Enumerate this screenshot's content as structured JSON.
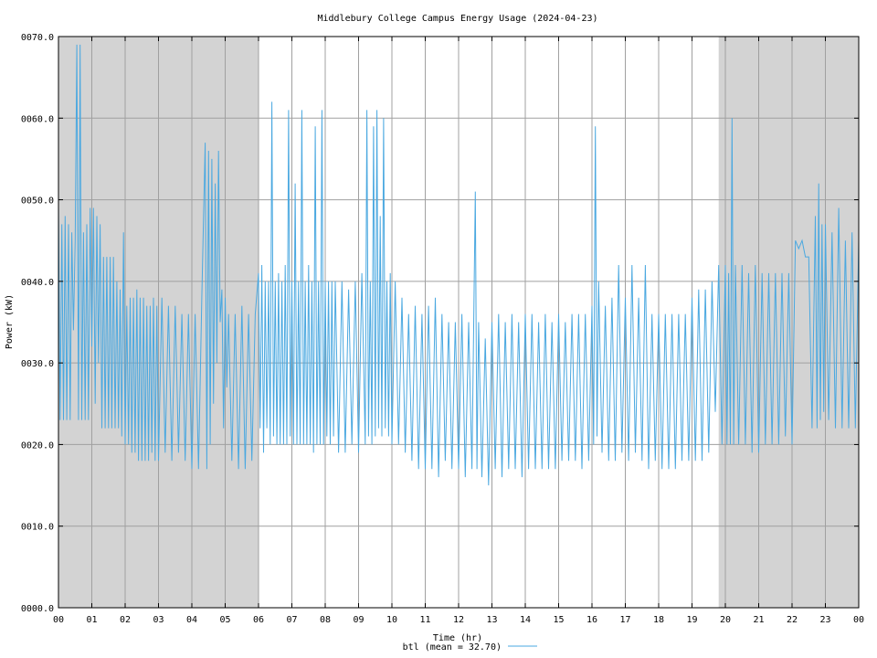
{
  "chart_data": {
    "type": "line",
    "title": "Middlebury College Campus Energy Usage (2024-04-23)",
    "xlabel": "Time (hr)",
    "ylabel": "Power (kW)",
    "xlim": [
      0,
      24
    ],
    "ylim": [
      0,
      70
    ],
    "x_ticks": [
      "00",
      "01",
      "02",
      "03",
      "04",
      "05",
      "06",
      "07",
      "08",
      "09",
      "10",
      "11",
      "12",
      "13",
      "14",
      "15",
      "16",
      "17",
      "18",
      "19",
      "20",
      "21",
      "22",
      "23",
      "00"
    ],
    "y_ticks": [
      "0000.0",
      "0010.0",
      "0020.0",
      "0030.0",
      "0040.0",
      "0050.0",
      "0060.0",
      "0070.0"
    ],
    "grid": true,
    "shaded_intervals": [
      [
        0,
        6
      ],
      [
        19.8,
        24
      ]
    ],
    "shade_color": "#d3d3d3",
    "legend": {
      "label": "btl (mean = 32.70)",
      "position": "bottom-center"
    },
    "series": [
      {
        "name": "btl",
        "color": "#4aa8e0",
        "points": [
          [
            0.0,
            49
          ],
          [
            0.05,
            23
          ],
          [
            0.1,
            47
          ],
          [
            0.15,
            23
          ],
          [
            0.2,
            48
          ],
          [
            0.25,
            23
          ],
          [
            0.3,
            47
          ],
          [
            0.35,
            23
          ],
          [
            0.4,
            46
          ],
          [
            0.45,
            34
          ],
          [
            0.5,
            45
          ],
          [
            0.55,
            69
          ],
          [
            0.6,
            23
          ],
          [
            0.65,
            69
          ],
          [
            0.7,
            23
          ],
          [
            0.75,
            46
          ],
          [
            0.8,
            23
          ],
          [
            0.85,
            47
          ],
          [
            0.9,
            23
          ],
          [
            0.95,
            49
          ],
          [
            1.0,
            32
          ],
          [
            1.05,
            49
          ],
          [
            1.1,
            25
          ],
          [
            1.15,
            48
          ],
          [
            1.2,
            30
          ],
          [
            1.25,
            47
          ],
          [
            1.3,
            22
          ],
          [
            1.35,
            43
          ],
          [
            1.4,
            22
          ],
          [
            1.45,
            43
          ],
          [
            1.5,
            22
          ],
          [
            1.55,
            43
          ],
          [
            1.6,
            22
          ],
          [
            1.65,
            43
          ],
          [
            1.7,
            22
          ],
          [
            1.75,
            40
          ],
          [
            1.8,
            22
          ],
          [
            1.85,
            39
          ],
          [
            1.9,
            21
          ],
          [
            1.95,
            46
          ],
          [
            2.0,
            20
          ],
          [
            2.05,
            37
          ],
          [
            2.1,
            20
          ],
          [
            2.15,
            38
          ],
          [
            2.2,
            19
          ],
          [
            2.25,
            38
          ],
          [
            2.3,
            19
          ],
          [
            2.35,
            39
          ],
          [
            2.4,
            18
          ],
          [
            2.45,
            38
          ],
          [
            2.5,
            18
          ],
          [
            2.55,
            38
          ],
          [
            2.6,
            18
          ],
          [
            2.65,
            37
          ],
          [
            2.7,
            18
          ],
          [
            2.75,
            37
          ],
          [
            2.8,
            19
          ],
          [
            2.85,
            38
          ],
          [
            2.9,
            18
          ],
          [
            2.95,
            37
          ],
          [
            3.0,
            18
          ],
          [
            3.1,
            38
          ],
          [
            3.2,
            19
          ],
          [
            3.3,
            37
          ],
          [
            3.4,
            18
          ],
          [
            3.5,
            37
          ],
          [
            3.6,
            19
          ],
          [
            3.7,
            36
          ],
          [
            3.8,
            18
          ],
          [
            3.9,
            36
          ],
          [
            4.0,
            17
          ],
          [
            4.1,
            36
          ],
          [
            4.2,
            17
          ],
          [
            4.3,
            38
          ],
          [
            4.4,
            57
          ],
          [
            4.45,
            17
          ],
          [
            4.5,
            56
          ],
          [
            4.55,
            20
          ],
          [
            4.6,
            55
          ],
          [
            4.65,
            25
          ],
          [
            4.7,
            52
          ],
          [
            4.75,
            30
          ],
          [
            4.8,
            56
          ],
          [
            4.85,
            35
          ],
          [
            4.9,
            39
          ],
          [
            4.95,
            22
          ],
          [
            5.0,
            38
          ],
          [
            5.05,
            27
          ],
          [
            5.1,
            36
          ],
          [
            5.2,
            18
          ],
          [
            5.3,
            36
          ],
          [
            5.4,
            17
          ],
          [
            5.5,
            37
          ],
          [
            5.6,
            17
          ],
          [
            5.7,
            36
          ],
          [
            5.8,
            18
          ],
          [
            5.9,
            36
          ],
          [
            6.0,
            41
          ],
          [
            6.05,
            22
          ],
          [
            6.1,
            42
          ],
          [
            6.15,
            19
          ],
          [
            6.2,
            40
          ],
          [
            6.25,
            22
          ],
          [
            6.3,
            40
          ],
          [
            6.35,
            20
          ],
          [
            6.4,
            62
          ],
          [
            6.45,
            21
          ],
          [
            6.5,
            40
          ],
          [
            6.55,
            20
          ],
          [
            6.6,
            41
          ],
          [
            6.65,
            20
          ],
          [
            6.7,
            40
          ],
          [
            6.75,
            20
          ],
          [
            6.8,
            42
          ],
          [
            6.85,
            20
          ],
          [
            6.9,
            61
          ],
          [
            6.95,
            21
          ],
          [
            7.0,
            40
          ],
          [
            7.05,
            20
          ],
          [
            7.1,
            52
          ],
          [
            7.15,
            20
          ],
          [
            7.2,
            40
          ],
          [
            7.25,
            20
          ],
          [
            7.3,
            61
          ],
          [
            7.35,
            20
          ],
          [
            7.4,
            40
          ],
          [
            7.45,
            20
          ],
          [
            7.5,
            42
          ],
          [
            7.55,
            20
          ],
          [
            7.6,
            40
          ],
          [
            7.65,
            19
          ],
          [
            7.7,
            59
          ],
          [
            7.75,
            20
          ],
          [
            7.8,
            40
          ],
          [
            7.85,
            20
          ],
          [
            7.9,
            61
          ],
          [
            7.95,
            20
          ],
          [
            8.0,
            40
          ],
          [
            8.05,
            21
          ],
          [
            8.1,
            40
          ],
          [
            8.15,
            20
          ],
          [
            8.2,
            40
          ],
          [
            8.25,
            21
          ],
          [
            8.3,
            40
          ],
          [
            8.4,
            19
          ],
          [
            8.5,
            40
          ],
          [
            8.6,
            19
          ],
          [
            8.7,
            39
          ],
          [
            8.8,
            20
          ],
          [
            8.9,
            40
          ],
          [
            9.0,
            19
          ],
          [
            9.1,
            41
          ],
          [
            9.2,
            20
          ],
          [
            9.25,
            61
          ],
          [
            9.3,
            21
          ],
          [
            9.35,
            40
          ],
          [
            9.4,
            20
          ],
          [
            9.45,
            59
          ],
          [
            9.5,
            21
          ],
          [
            9.55,
            61
          ],
          [
            9.6,
            22
          ],
          [
            9.65,
            48
          ],
          [
            9.7,
            21
          ],
          [
            9.75,
            60
          ],
          [
            9.8,
            22
          ],
          [
            9.85,
            40
          ],
          [
            9.9,
            21
          ],
          [
            9.95,
            41
          ],
          [
            10.0,
            20
          ],
          [
            10.1,
            40
          ],
          [
            10.2,
            20
          ],
          [
            10.3,
            38
          ],
          [
            10.4,
            19
          ],
          [
            10.5,
            36
          ],
          [
            10.6,
            18
          ],
          [
            10.7,
            37
          ],
          [
            10.8,
            17
          ],
          [
            10.9,
            36
          ],
          [
            11.0,
            17
          ],
          [
            11.1,
            37
          ],
          [
            11.2,
            17
          ],
          [
            11.3,
            38
          ],
          [
            11.4,
            16
          ],
          [
            11.5,
            36
          ],
          [
            11.6,
            18
          ],
          [
            11.7,
            35
          ],
          [
            11.8,
            17
          ],
          [
            11.9,
            35
          ],
          [
            12.0,
            17
          ],
          [
            12.1,
            36
          ],
          [
            12.2,
            16
          ],
          [
            12.3,
            35
          ],
          [
            12.4,
            17
          ],
          [
            12.5,
            51
          ],
          [
            12.55,
            17
          ],
          [
            12.6,
            35
          ],
          [
            12.7,
            16
          ],
          [
            12.8,
            33
          ],
          [
            12.9,
            15
          ],
          [
            13.0,
            35
          ],
          [
            13.1,
            17
          ],
          [
            13.2,
            36
          ],
          [
            13.3,
            16
          ],
          [
            13.4,
            35
          ],
          [
            13.5,
            17
          ],
          [
            13.6,
            36
          ],
          [
            13.7,
            17
          ],
          [
            13.8,
            35
          ],
          [
            13.9,
            16
          ],
          [
            14.0,
            36
          ],
          [
            14.1,
            17
          ],
          [
            14.2,
            36
          ],
          [
            14.3,
            17
          ],
          [
            14.4,
            35
          ],
          [
            14.5,
            17
          ],
          [
            14.6,
            36
          ],
          [
            14.7,
            17
          ],
          [
            14.8,
            35
          ],
          [
            14.9,
            17
          ],
          [
            15.0,
            36
          ],
          [
            15.1,
            18
          ],
          [
            15.2,
            35
          ],
          [
            15.3,
            18
          ],
          [
            15.4,
            36
          ],
          [
            15.5,
            18
          ],
          [
            15.6,
            36
          ],
          [
            15.7,
            17
          ],
          [
            15.8,
            36
          ],
          [
            15.9,
            18
          ],
          [
            16.0,
            37
          ],
          [
            16.05,
            20
          ],
          [
            16.1,
            59
          ],
          [
            16.15,
            21
          ],
          [
            16.2,
            40
          ],
          [
            16.3,
            19
          ],
          [
            16.4,
            37
          ],
          [
            16.5,
            18
          ],
          [
            16.6,
            38
          ],
          [
            16.7,
            18
          ],
          [
            16.8,
            42
          ],
          [
            16.9,
            19
          ],
          [
            17.0,
            38
          ],
          [
            17.1,
            18
          ],
          [
            17.2,
            42
          ],
          [
            17.3,
            19
          ],
          [
            17.4,
            38
          ],
          [
            17.5,
            18
          ],
          [
            17.6,
            42
          ],
          [
            17.7,
            17
          ],
          [
            17.8,
            36
          ],
          [
            17.9,
            18
          ],
          [
            18.0,
            36
          ],
          [
            18.1,
            17
          ],
          [
            18.2,
            36
          ],
          [
            18.3,
            17
          ],
          [
            18.4,
            36
          ],
          [
            18.5,
            17
          ],
          [
            18.6,
            36
          ],
          [
            18.7,
            18
          ],
          [
            18.8,
            36
          ],
          [
            18.9,
            18
          ],
          [
            19.0,
            38
          ],
          [
            19.1,
            18
          ],
          [
            19.2,
            39
          ],
          [
            19.3,
            18
          ],
          [
            19.4,
            39
          ],
          [
            19.5,
            19
          ],
          [
            19.6,
            40
          ],
          [
            19.7,
            24
          ],
          [
            19.8,
            42
          ],
          [
            19.9,
            20
          ],
          [
            20.0,
            42
          ],
          [
            20.05,
            20
          ],
          [
            20.1,
            41
          ],
          [
            20.15,
            20
          ],
          [
            20.2,
            60
          ],
          [
            20.25,
            20
          ],
          [
            20.3,
            42
          ],
          [
            20.4,
            20
          ],
          [
            20.5,
            42
          ],
          [
            20.6,
            20
          ],
          [
            20.7,
            41
          ],
          [
            20.8,
            19
          ],
          [
            20.9,
            42
          ],
          [
            21.0,
            19
          ],
          [
            21.1,
            41
          ],
          [
            21.2,
            20
          ],
          [
            21.3,
            41
          ],
          [
            21.4,
            20
          ],
          [
            21.5,
            41
          ],
          [
            21.6,
            20
          ],
          [
            21.7,
            41
          ],
          [
            21.8,
            21
          ],
          [
            21.9,
            41
          ],
          [
            22.0,
            20
          ],
          [
            22.1,
            45
          ],
          [
            22.2,
            44
          ],
          [
            22.3,
            45
          ],
          [
            22.4,
            43
          ],
          [
            22.5,
            43
          ],
          [
            22.6,
            22
          ],
          [
            22.7,
            48
          ],
          [
            22.75,
            22
          ],
          [
            22.8,
            52
          ],
          [
            22.85,
            23
          ],
          [
            22.9,
            47
          ],
          [
            22.95,
            24
          ],
          [
            23.0,
            47
          ],
          [
            23.1,
            23
          ],
          [
            23.2,
            46
          ],
          [
            23.3,
            22
          ],
          [
            23.4,
            49
          ],
          [
            23.5,
            22
          ],
          [
            23.6,
            45
          ],
          [
            23.7,
            22
          ],
          [
            23.8,
            46
          ],
          [
            23.9,
            22
          ],
          [
            24.0,
            45
          ]
        ]
      }
    ]
  }
}
